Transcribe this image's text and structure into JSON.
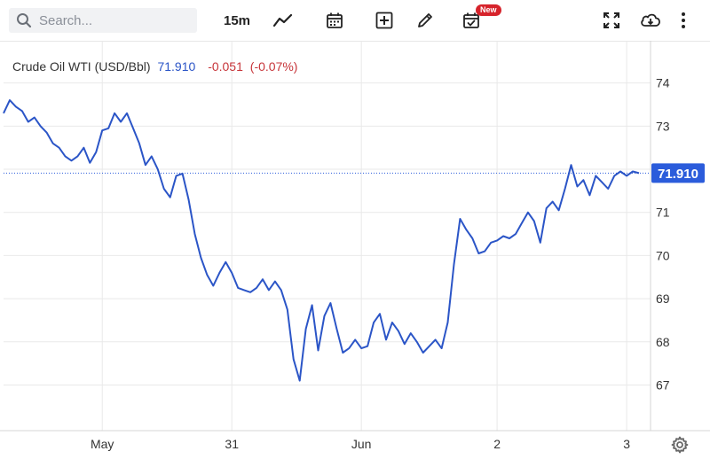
{
  "toolbar": {
    "search_placeholder": "Search...",
    "interval": "15m",
    "new_badge": "New",
    "icons": [
      "search-icon",
      "line-chart-icon",
      "calendar-icon",
      "add-indicator-icon",
      "pencil-icon",
      "calendar-check-icon",
      "fullscreen-icon",
      "cloud-download-icon",
      "more-vert-icon"
    ]
  },
  "legend": {
    "symbol": "Crude Oil WTI (USD/Bbl)",
    "last": "71.910",
    "change": "-0.051",
    "change_pct": "(-0.07%)"
  },
  "colors": {
    "line": "#2b55c7",
    "price_tag": "#2b5cdb",
    "negative": "#c7353a",
    "grid": "#e9e9e9"
  },
  "settings_icon": "gear-icon",
  "chart_data": {
    "type": "line",
    "title": "Crude Oil WTI (USD/Bbl)",
    "ylim": [
      66,
      74.8
    ],
    "yticks": [
      67,
      68,
      69,
      70,
      71,
      72,
      73,
      74
    ],
    "ytick_labels": [
      "67",
      "68",
      "69",
      "70",
      "71",
      "72",
      "73",
      "74"
    ],
    "xtick_labels": [
      "May",
      "31",
      "Jun",
      "2",
      "3"
    ],
    "xtick_index": [
      16,
      37,
      58,
      80,
      101
    ],
    "last_price_label": "71.910",
    "last_price": 71.91,
    "grid": true,
    "x": [
      0,
      1,
      2,
      3,
      4,
      5,
      6,
      7,
      8,
      9,
      10,
      11,
      12,
      13,
      14,
      15,
      16,
      17,
      18,
      19,
      20,
      21,
      22,
      23,
      24,
      25,
      26,
      27,
      28,
      29,
      30,
      31,
      32,
      33,
      34,
      35,
      36,
      37,
      38,
      39,
      40,
      41,
      42,
      43,
      44,
      45,
      46,
      47,
      48,
      49,
      50,
      51,
      52,
      53,
      54,
      55,
      56,
      57,
      58,
      59,
      60,
      61,
      62,
      63,
      64,
      65,
      66,
      67,
      68,
      69,
      70,
      71,
      72,
      73,
      74,
      75,
      76,
      77,
      78,
      79,
      80,
      81,
      82,
      83,
      84,
      85,
      86,
      87,
      88,
      89,
      90,
      91,
      92,
      93,
      94,
      95,
      96,
      97,
      98,
      99,
      100,
      101,
      102,
      103
    ],
    "values": [
      73.3,
      73.6,
      73.45,
      73.35,
      73.1,
      73.2,
      73.0,
      72.85,
      72.6,
      72.5,
      72.3,
      72.2,
      72.3,
      72.5,
      72.15,
      72.4,
      72.9,
      72.95,
      73.3,
      73.1,
      73.3,
      72.95,
      72.6,
      72.1,
      72.3,
      72.0,
      71.55,
      71.35,
      71.85,
      71.9,
      71.3,
      70.5,
      69.95,
      69.55,
      69.3,
      69.6,
      69.85,
      69.6,
      69.25,
      69.2,
      69.15,
      69.25,
      69.45,
      69.2,
      69.4,
      69.2,
      68.75,
      67.6,
      67.1,
      68.3,
      68.85,
      67.8,
      68.6,
      68.9,
      68.3,
      67.75,
      67.85,
      68.05,
      67.85,
      67.9,
      68.45,
      68.65,
      68.05,
      68.45,
      68.25,
      67.95,
      68.2,
      68.0,
      67.75,
      67.9,
      68.05,
      67.85,
      68.45,
      69.8,
      70.85,
      70.6,
      70.4,
      70.05,
      70.1,
      70.3,
      70.35,
      70.45,
      70.4,
      70.5,
      70.75,
      71.0,
      70.8,
      70.3,
      71.1,
      71.25,
      71.05,
      71.55,
      72.1,
      71.6,
      71.75,
      71.4,
      71.85,
      71.7,
      71.55,
      71.85,
      71.95,
      71.85,
      71.95,
      71.91
    ]
  }
}
